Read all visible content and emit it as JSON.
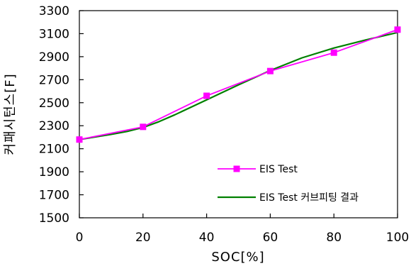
{
  "chart_data": {
    "type": "line",
    "title": "",
    "xlabel": "SOC[%]",
    "ylabel": "커패시턴스[F]",
    "xlim": [
      0,
      100
    ],
    "ylim": [
      1500,
      3300
    ],
    "xticks": [
      0,
      20,
      40,
      60,
      80,
      100
    ],
    "yticks": [
      1500,
      1700,
      1900,
      2100,
      2300,
      2500,
      2700,
      2900,
      3100,
      3300
    ],
    "grid": false,
    "legend_position": "bottom-right",
    "series": [
      {
        "name": "EIS Test",
        "color": "#ff00ff",
        "marker": "square",
        "x": [
          0,
          20,
          40,
          60,
          80,
          100
        ],
        "y": [
          2180,
          2290,
          2560,
          2775,
          2935,
          3135
        ]
      },
      {
        "name": "EIS Test 커브피팅 결과",
        "color": "#008000",
        "marker": "none",
        "x": [
          0,
          10,
          15,
          20,
          25,
          30,
          40,
          50,
          60,
          70,
          80,
          90,
          100
        ],
        "y": [
          2180,
          2225,
          2250,
          2285,
          2335,
          2395,
          2525,
          2655,
          2780,
          2890,
          2975,
          3045,
          3110
        ]
      }
    ]
  }
}
